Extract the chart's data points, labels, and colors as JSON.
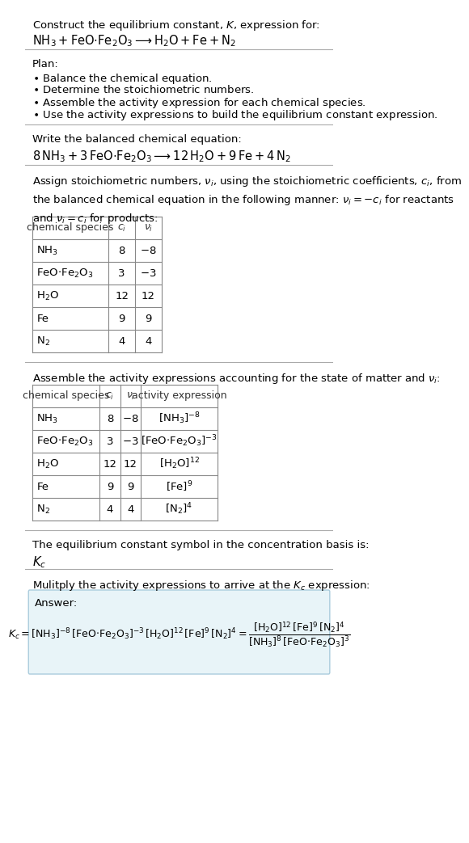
{
  "title_line1": "Construct the equilibrium constant, $K$, expression for:",
  "title_line2": "$\\mathrm{NH_3 + FeO{\\cdot}Fe_2O_3 \\longrightarrow H_2O + Fe + N_2}$",
  "plan_header": "Plan:",
  "plan_items": [
    "\\textbf{\\cdot} Balance the chemical equation.",
    "\\textbf{\\cdot} Determine the stoichiometric numbers.",
    "\\textbf{\\cdot} Assemble the activity expression for each chemical species.",
    "\\textbf{\\cdot} Use the activity expressions to build the equilibrium constant expression."
  ],
  "balanced_header": "Write the balanced chemical equation:",
  "balanced_eq": "$\\mathrm{8\\,NH_3 + 3\\,FeO{\\cdot}Fe_2O_3 \\longrightarrow 12\\,H_2O + 9\\,Fe + 4\\,N_2}$",
  "stoich_header": "Assign stoichiometric numbers, $\\nu_i$, using the stoichiometric coefficients, $c_i$, from the balanced chemical equation in the following manner: $\\nu_i = -c_i$ for reactants and $\\nu_i = c_i$ for products:",
  "table1_cols": [
    "chemical species",
    "$c_i$",
    "$\\nu_i$"
  ],
  "table1_rows": [
    [
      "$\\mathrm{NH_3}$",
      "8",
      "$-8$"
    ],
    [
      "$\\mathrm{FeO{\\cdot}Fe_2O_3}$",
      "3",
      "$-3$"
    ],
    [
      "$\\mathrm{H_2O}$",
      "12",
      "12"
    ],
    [
      "Fe",
      "9",
      "9"
    ],
    [
      "$\\mathrm{N_2}$",
      "4",
      "4"
    ]
  ],
  "activity_header": "Assemble the activity expressions accounting for the state of matter and $\\nu_i$:",
  "table2_cols": [
    "chemical species",
    "$c_i$",
    "$\\nu_i$",
    "activity expression"
  ],
  "table2_rows": [
    [
      "$\\mathrm{NH_3}$",
      "8",
      "$-8$",
      "$[\\mathrm{NH_3}]^{-8}$"
    ],
    [
      "$\\mathrm{FeO{\\cdot}Fe_2O_3}$",
      "3",
      "$-3$",
      "$[\\mathrm{FeO{\\cdot}Fe_2O_3}]^{-3}$"
    ],
    [
      "$\\mathrm{H_2O}$",
      "12",
      "12",
      "$[\\mathrm{H_2O}]^{12}$"
    ],
    [
      "Fe",
      "9",
      "9",
      "$[\\mathrm{Fe}]^{9}$"
    ],
    [
      "$\\mathrm{N_2}$",
      "4",
      "4",
      "$[\\mathrm{N_2}]^{4}$"
    ]
  ],
  "kc_header": "The equilibrium constant symbol in the concentration basis is:",
  "kc_symbol": "$K_c$",
  "multiply_header": "Mulitply the activity expressions to arrive at the $K_c$ expression:",
  "answer_label": "Answer:",
  "answer_eq1": "$K_c = [\\mathrm{NH_3}]^{-8}\\,[\\mathrm{FeO{\\cdot}Fe_2O_3}]^{-3}\\,[\\mathrm{H_2O}]^{12}\\,[\\mathrm{Fe}]^{9}\\,[\\mathrm{N_2}]^{4} = \\dfrac{[\\mathrm{H_2O}]^{12}\\,[\\mathrm{Fe}]^{9}\\,[\\mathrm{N_2}]^{4}}{[\\mathrm{NH_3}]^{8}\\,[\\mathrm{FeO{\\cdot}Fe_2O_3}]^{3}}$",
  "bg_color": "#ffffff",
  "answer_bg": "#e8f4f8",
  "table_border": "#cccccc",
  "text_color": "#000000",
  "font_size": 9.5
}
